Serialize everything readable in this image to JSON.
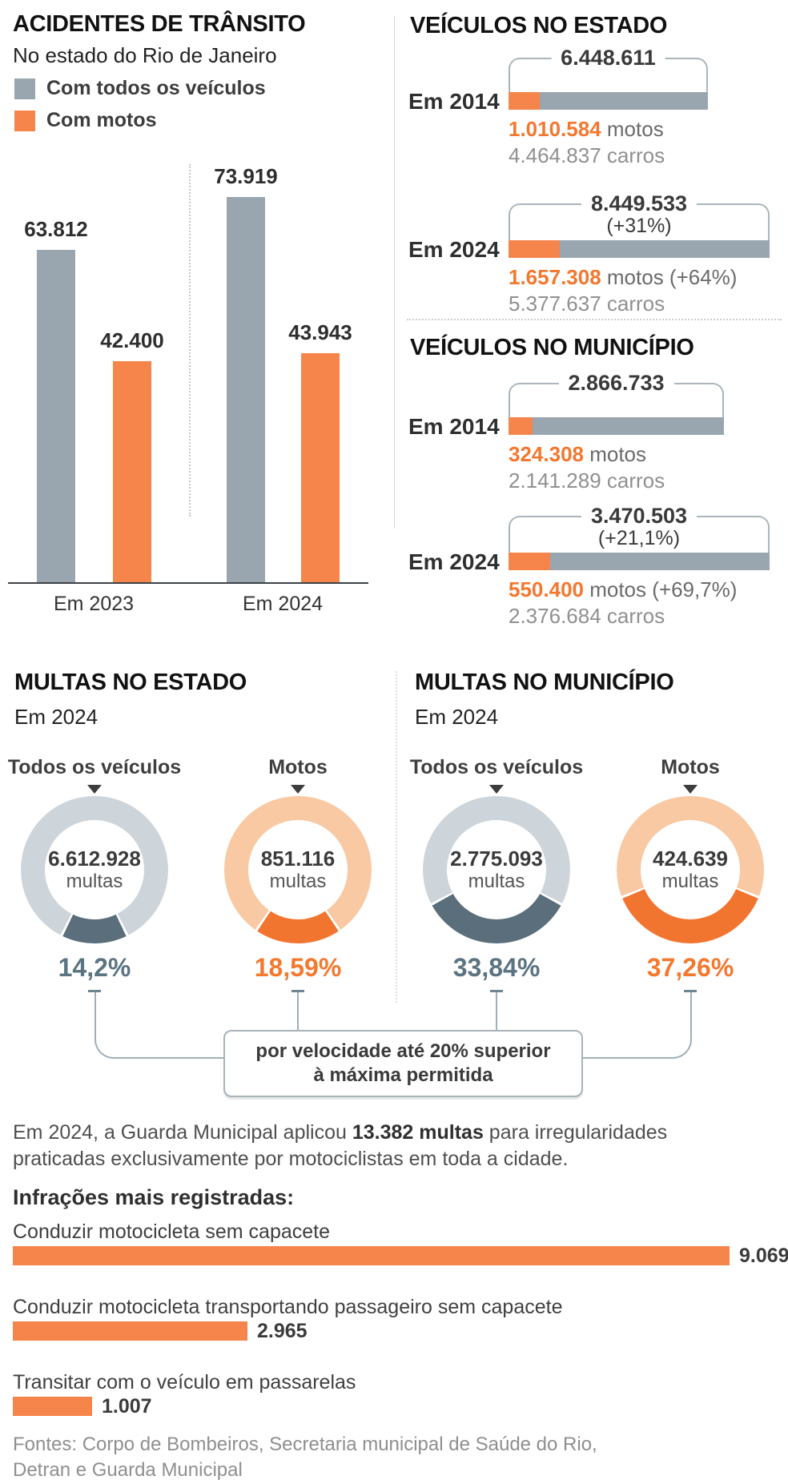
{
  "colors": {
    "orange": "#f5854a",
    "orange_strong": "#f2752f",
    "gray": "#9aa6af",
    "ring_gray": "#cdd5db",
    "peach": "#f8c9a3",
    "slate": "#5a6e7b"
  },
  "accidents": {
    "title": "ACIDENTES DE TRÂNSITO",
    "subtitle": "No estado do Rio de Janeiro",
    "legend": {
      "all": "Com todos os veículos",
      "motos": "Com motos"
    },
    "bar_value_labels": [
      "63.812",
      "42.400",
      "73.919",
      "43.943"
    ],
    "x_labels": [
      "Em 2023",
      "Em 2024"
    ]
  },
  "vehicles": {
    "state": {
      "title": "VEÍCULOS NO ESTADO",
      "rows": [
        {
          "year": "Em 2014",
          "total": "6.448.611",
          "total_note": "",
          "motos_value": "1.010.584",
          "motos_suffix": " motos",
          "carros": "4.464.837 carros"
        },
        {
          "year": "Em 2024",
          "total": "8.449.533",
          "total_note": "(+31%)",
          "motos_value": "1.657.308",
          "motos_suffix": " motos (+64%)",
          "carros": "5.377.637 carros"
        }
      ]
    },
    "city": {
      "title": "VEÍCULOS NO MUNICÍPIO",
      "rows": [
        {
          "year": "Em 2014",
          "total": "2.866.733",
          "total_note": "",
          "motos_value": "324.308",
          "motos_suffix": " motos",
          "carros": "2.141.289 carros"
        },
        {
          "year": "Em 2024",
          "total": "3.470.503",
          "total_note": "(+21,1%)",
          "motos_value": "550.400",
          "motos_suffix": " motos (+69,7%)",
          "carros": "2.376.684 carros"
        }
      ]
    }
  },
  "fines": {
    "state_title": "MULTAS NO ESTADO",
    "state_subtitle": "Em 2024",
    "city_title": "MULTAS NO MUNICÍPIO",
    "city_subtitle": "Em 2024",
    "donuts": [
      {
        "column": "Todos os veículos",
        "value": "6.612.928",
        "unit": "multas",
        "pct_label": "14,2%"
      },
      {
        "column": "Motos",
        "value": "851.116",
        "unit": "multas",
        "pct_label": "18,59%"
      },
      {
        "column": "Todos os veículos",
        "value": "2.775.093",
        "unit": "multas",
        "pct_label": "33,84%"
      },
      {
        "column": "Motos",
        "value": "424.639",
        "unit": "multas",
        "pct_label": "37,26%"
      }
    ],
    "callout_line1": "por velocidade até 20% superior",
    "callout_line2": "à máxima permitida"
  },
  "note": {
    "pre": "Em 2024, a Guarda Municipal aplicou ",
    "bold": "13.382 multas",
    "post": " para irregularidades praticadas exclusivamente por motociclistas em toda a cidade."
  },
  "infractions": {
    "title": "Infrações mais registradas:",
    "rows": [
      {
        "label": "Conduzir motocicleta sem capacete",
        "value_label": "9.069"
      },
      {
        "label": "Conduzir motocicleta transportando passageiro sem capacete",
        "value_label": "2.965"
      },
      {
        "label": "Transitar com o veículo em passarelas",
        "value_label": "1.007"
      }
    ]
  },
  "footer": "Fontes: Corpo de Bombeiros, Secretaria municipal de Saúde do Rio, Detran e Guarda Municipal",
  "chart_data": [
    {
      "type": "bar",
      "title": "Acidentes de trânsito — No estado do Rio de Janeiro",
      "categories": [
        "Em 2023",
        "Em 2024"
      ],
      "series": [
        {
          "name": "Com todos os veículos",
          "values": [
            63812,
            73919
          ]
        },
        {
          "name": "Com motos",
          "values": [
            42400,
            43943
          ]
        }
      ],
      "ylim": [
        0,
        73919
      ],
      "grid": false,
      "legend_position": "top-left"
    },
    {
      "type": "bar",
      "subtype": "stacked-horizontal",
      "title": "Veículos no estado",
      "categories": [
        "Em 2014",
        "Em 2024"
      ],
      "series": [
        {
          "name": "motos",
          "values": [
            1010584,
            1657308
          ]
        },
        {
          "name": "carros",
          "values": [
            4464837,
            5377637
          ]
        }
      ],
      "totals": [
        6448611,
        8449533
      ],
      "growth_notes": {
        "total_2024": "+31%",
        "motos_2024": "+64%"
      }
    },
    {
      "type": "bar",
      "subtype": "stacked-horizontal",
      "title": "Veículos no município",
      "categories": [
        "Em 2014",
        "Em 2024"
      ],
      "series": [
        {
          "name": "motos",
          "values": [
            324308,
            550400
          ]
        },
        {
          "name": "carros",
          "values": [
            2141289,
            2376684
          ]
        }
      ],
      "totals": [
        2866733,
        3470503
      ],
      "growth_notes": {
        "total_2024": "+21,1%",
        "motos_2024": "+69,7%"
      }
    },
    {
      "type": "pie",
      "subtype": "donut",
      "title": "Multas em 2024 — parcela por velocidade até 20% superior à máxima permitida",
      "donuts": [
        {
          "group": "Multas no estado",
          "segment": "Todos os veículos",
          "total": 6612928,
          "pct": 14.2
        },
        {
          "group": "Multas no estado",
          "segment": "Motos",
          "total": 851116,
          "pct": 18.59
        },
        {
          "group": "Multas no município",
          "segment": "Todos os veículos",
          "total": 2775093,
          "pct": 33.84
        },
        {
          "group": "Multas no município",
          "segment": "Motos",
          "total": 424639,
          "pct": 37.26
        }
      ]
    },
    {
      "type": "bar",
      "subtype": "horizontal",
      "title": "Infrações mais registradas",
      "categories": [
        "Conduzir motocicleta sem capacete",
        "Conduzir motocicleta transportando passageiro sem capacete",
        "Transitar com o veículo em passarelas"
      ],
      "values": [
        9069,
        2965,
        1007
      ]
    }
  ]
}
